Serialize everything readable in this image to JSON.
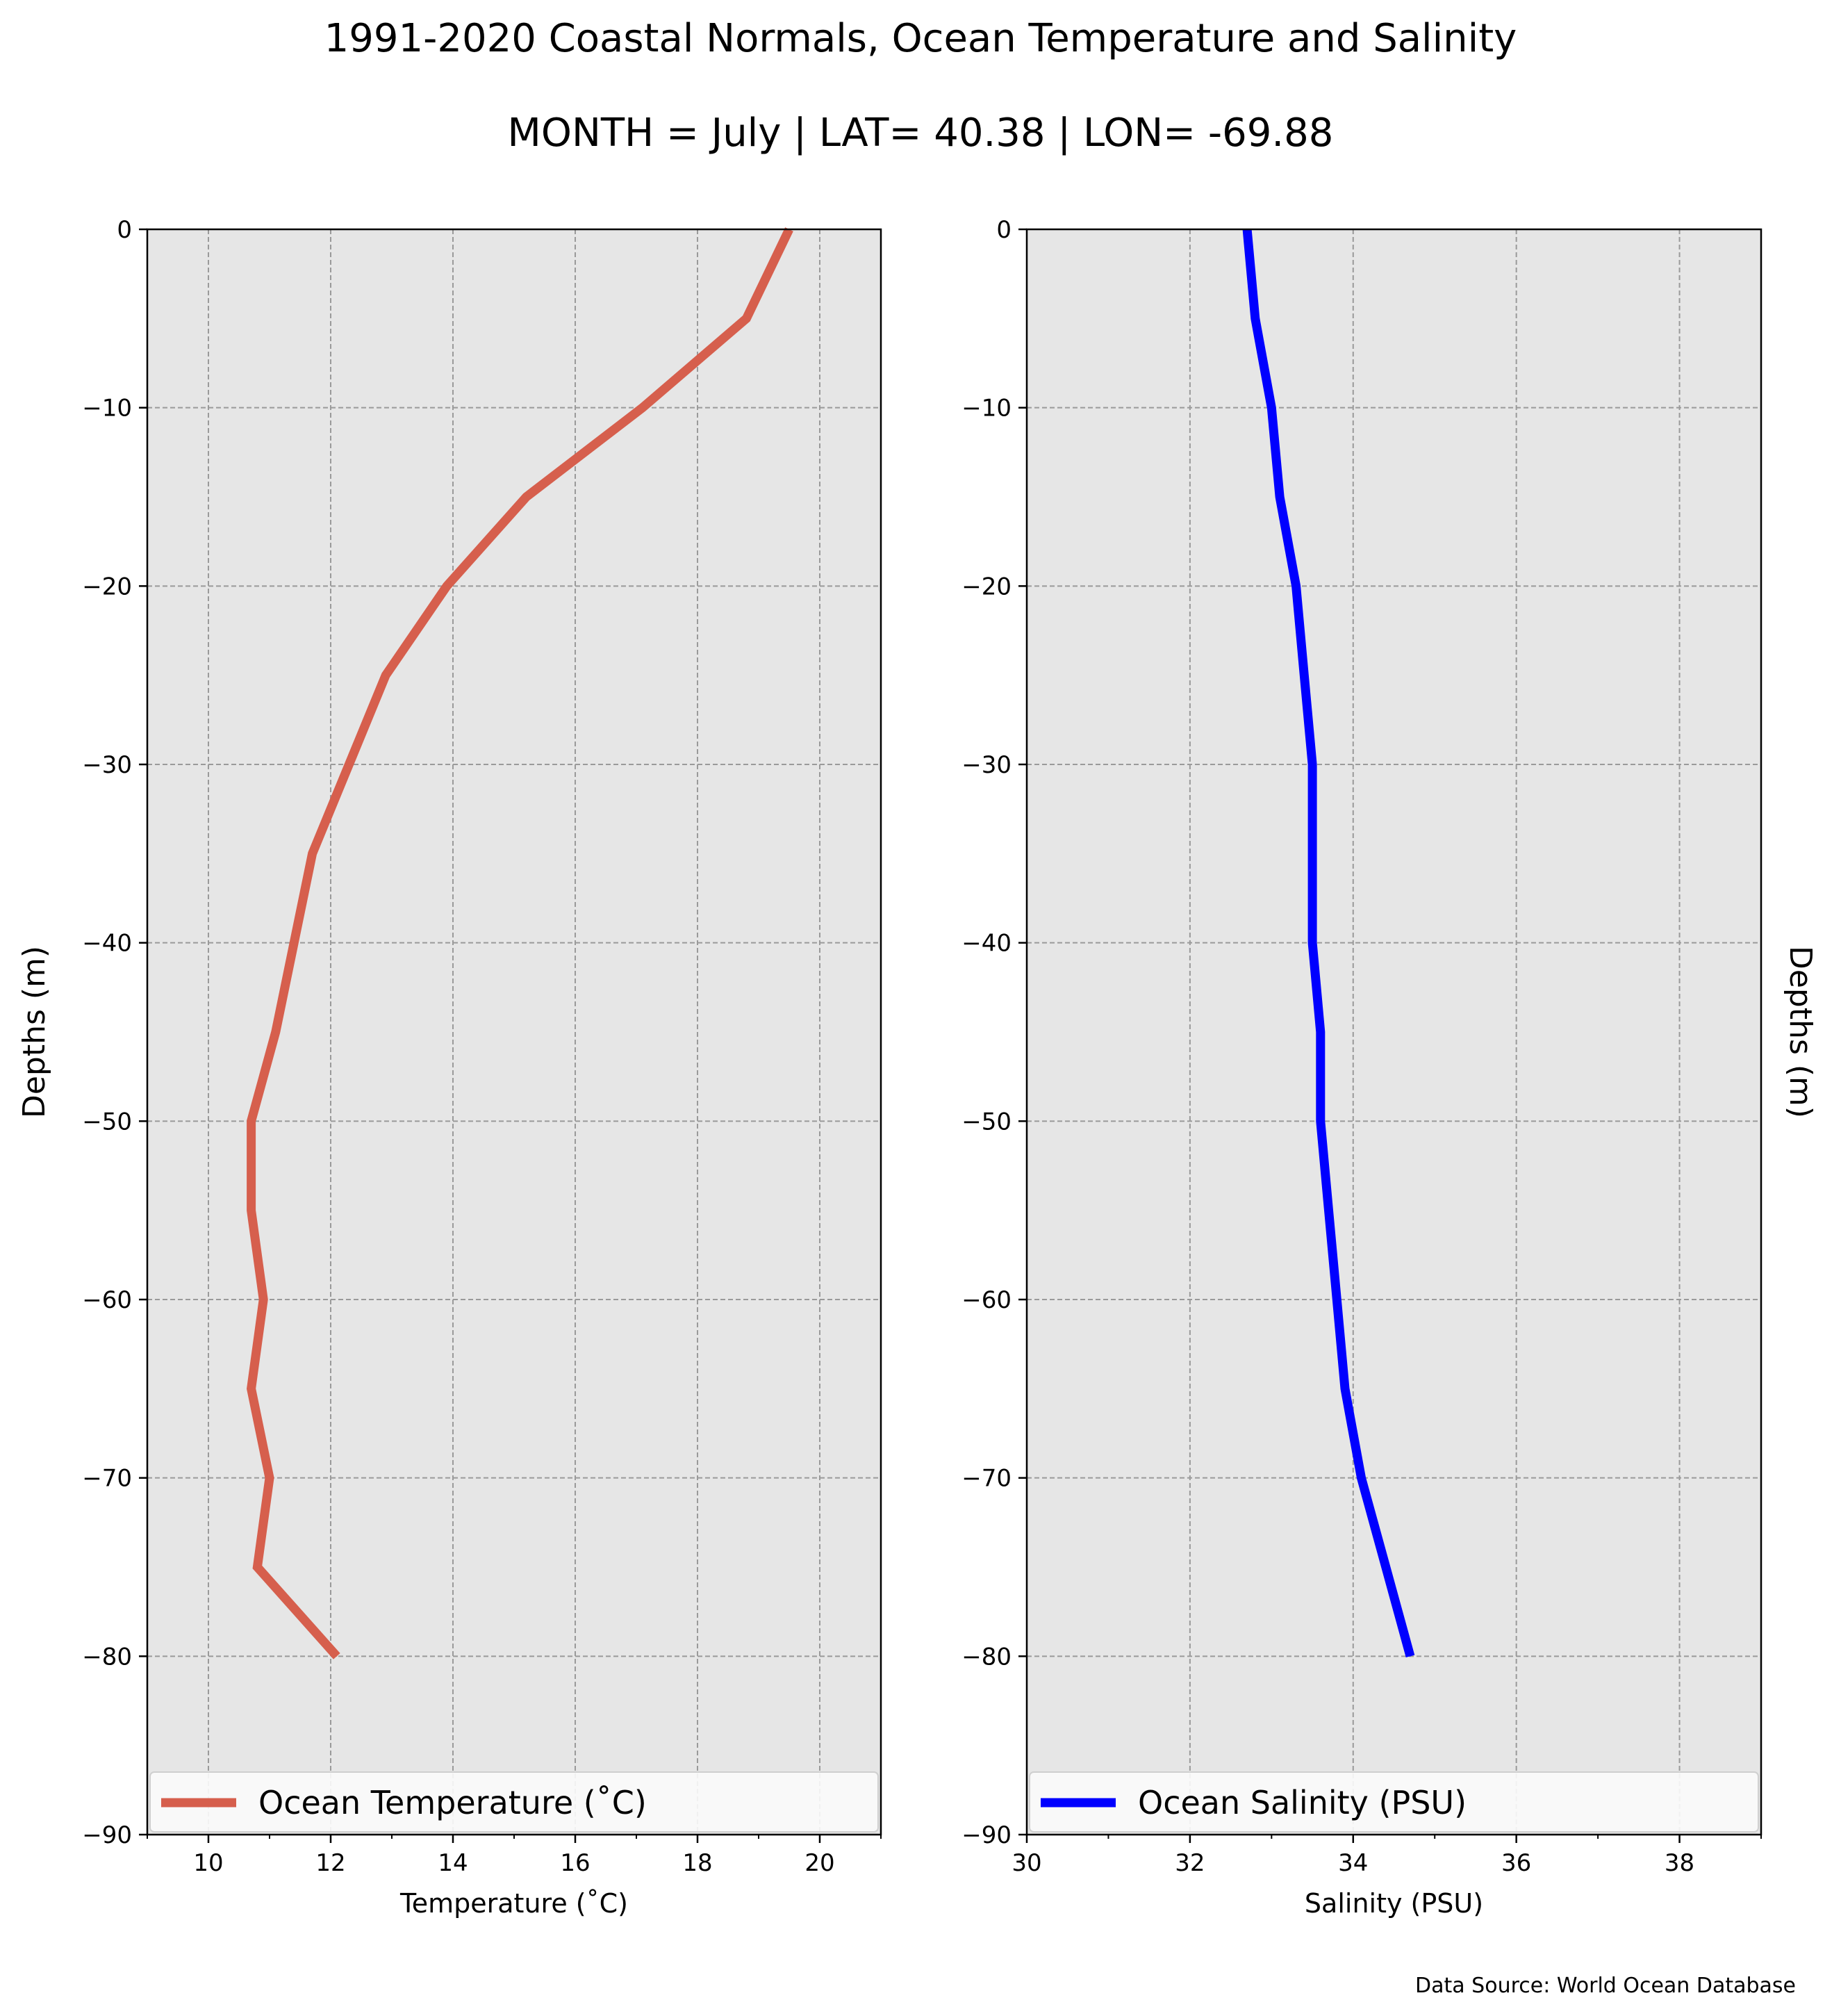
{
  "figure": {
    "title": "1991-2020 Coastal Normals, Ocean Temperature and Salinity",
    "subtitle": "MONTH = July | LAT= 40.38 | LON= -69.88",
    "source_note": "Data Source: World Ocean Database"
  },
  "chart_data": [
    {
      "type": "line",
      "xlabel": "Temperature ($^\\circ$C)",
      "xlabel_display": "Temperature (˚C)",
      "ylabel": "Depths (m)",
      "xlim": [
        9,
        21
      ],
      "ylim": [
        -90,
        0
      ],
      "xticks": [
        10,
        12,
        14,
        16,
        18,
        20
      ],
      "xticks_minor": [
        9,
        11,
        13,
        15,
        17,
        19,
        21
      ],
      "yticks": [
        0,
        -10,
        -20,
        -30,
        -40,
        -50,
        -60,
        -70,
        -80,
        -90
      ],
      "grid": true,
      "background_color": "#e6e6e6",
      "legend_location": "lower center",
      "series": [
        {
          "name": "Ocean Temperature (˚C)",
          "color": "#d65f4d",
          "x": [
            19.5,
            18.8,
            17.1,
            15.2,
            13.9,
            12.9,
            12.3,
            11.7,
            11.4,
            11.1,
            10.7,
            10.7,
            10.9,
            10.7,
            11.0,
            10.8,
            12.1
          ],
          "y": [
            0,
            -5,
            -10,
            -15,
            -20,
            -25,
            -30,
            -35,
            -40,
            -45,
            -50,
            -55,
            -60,
            -65,
            -70,
            -75,
            -80
          ]
        }
      ]
    },
    {
      "type": "line",
      "xlabel": "Salinity (PSU)",
      "ylabel": "Depths (m)",
      "xlim": [
        30,
        39
      ],
      "ylim": [
        -90,
        0
      ],
      "xticks": [
        30,
        32,
        34,
        36,
        38
      ],
      "xticks_minor": [
        31,
        33,
        35,
        37,
        39
      ],
      "yticks": [
        0,
        -10,
        -20,
        -30,
        -40,
        -50,
        -60,
        -70,
        -80,
        -90
      ],
      "grid": true,
      "background_color": "#e6e6e6",
      "legend_location": "lower center",
      "series": [
        {
          "name": "Ocean Salinity (PSU)",
          "color": "#0000ff",
          "x": [
            32.7,
            32.8,
            33.0,
            33.1,
            33.3,
            33.4,
            33.5,
            33.5,
            33.5,
            33.6,
            33.6,
            33.7,
            33.8,
            33.9,
            34.1,
            34.4,
            34.7
          ],
          "y": [
            0,
            -5,
            -10,
            -15,
            -20,
            -25,
            -30,
            -35,
            -40,
            -45,
            -50,
            -55,
            -60,
            -65,
            -70,
            -75,
            -80
          ]
        }
      ]
    }
  ]
}
